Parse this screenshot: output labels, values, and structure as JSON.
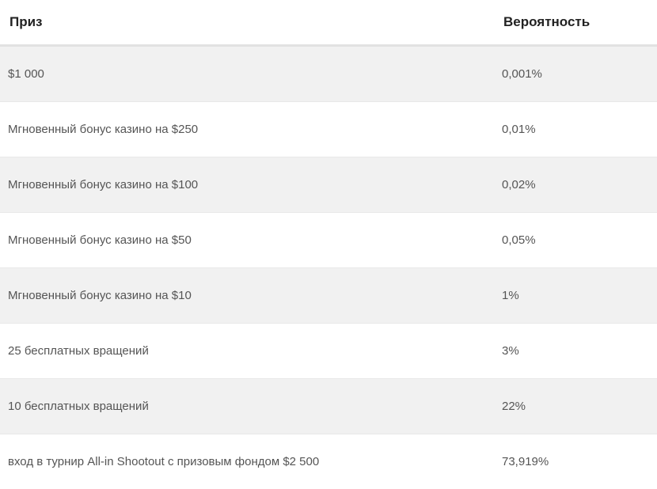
{
  "table": {
    "headers": {
      "prize": "Приз",
      "probability": "Вероятность"
    },
    "rows": [
      {
        "prize": "$1 000",
        "probability": "0,001%"
      },
      {
        "prize": "Мгновенный бонус казино на $250",
        "probability": "0,01%"
      },
      {
        "prize": "Мгновенный бонус казино на $100",
        "probability": "0,02%"
      },
      {
        "prize": "Мгновенный бонус казино на $50",
        "probability": "0,05%"
      },
      {
        "prize": "Мгновенный бонус казино на $10",
        "probability": "1%"
      },
      {
        "prize": "25 бесплатных вращений",
        "probability": "3%"
      },
      {
        "prize": "10 бесплатных вращений",
        "probability": "22%"
      },
      {
        "prize": "вход в турнир All-in Shootout с призовым фондом $2 500",
        "probability": "73,919%"
      }
    ]
  }
}
